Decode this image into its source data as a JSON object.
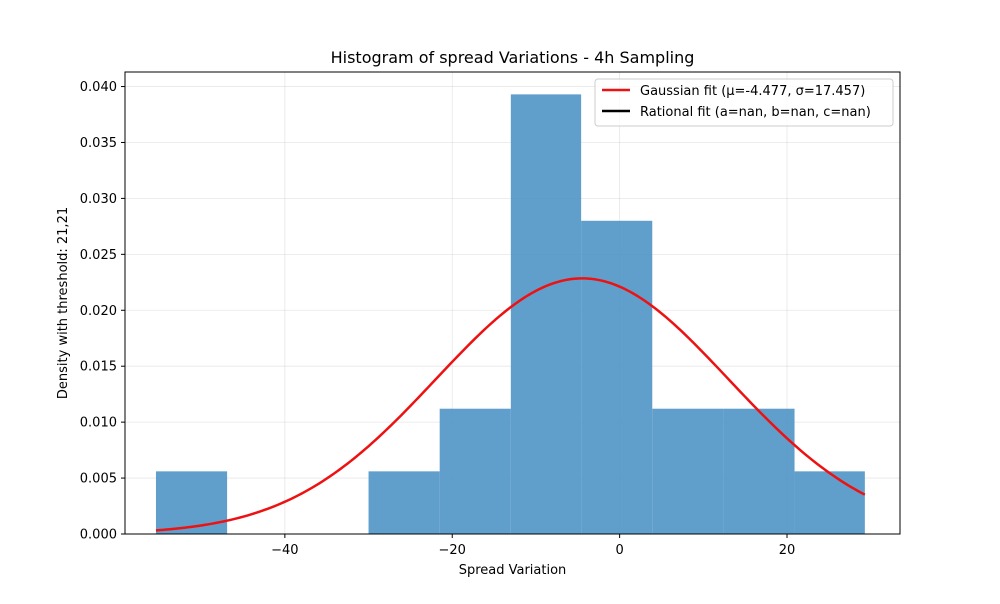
{
  "chart_data": {
    "type": "bar",
    "title": "Histogram of spread Variations - 4h Sampling",
    "xlabel": "Spread Variation",
    "ylabel": "Density with threshold: 21,21",
    "xlim": [
      -59.1,
      33.5
    ],
    "ylim": [
      0,
      0.0413
    ],
    "xticks": [
      -40,
      -20,
      0,
      20
    ],
    "xtick_labels": [
      "−40",
      "−20",
      "0",
      "20"
    ],
    "yticks": [
      0,
      0.005,
      0.01,
      0.015,
      0.02,
      0.025,
      0.03,
      0.035,
      0.04
    ],
    "ytick_labels": [
      "0.000",
      "0.005",
      "0.010",
      "0.015",
      "0.020",
      "0.025",
      "0.030",
      "0.035",
      "0.040"
    ],
    "grid": true,
    "legend_position": "top-right",
    "bar_color": "#4f93c7",
    "bins": [
      {
        "x0": -55.4,
        "x1": -46.9,
        "density": 0.0056
      },
      {
        "x0": -46.9,
        "x1": -38.5,
        "density": 0
      },
      {
        "x0": -38.5,
        "x1": -30.0,
        "density": 0
      },
      {
        "x0": -30.0,
        "x1": -21.5,
        "density": 0.0056
      },
      {
        "x0": -21.5,
        "x1": -13.0,
        "density": 0.0112
      },
      {
        "x0": -13.0,
        "x1": -4.6,
        "density": 0.0393
      },
      {
        "x0": -4.6,
        "x1": 3.9,
        "density": 0.028
      },
      {
        "x0": 3.9,
        "x1": 12.4,
        "density": 0.0112
      },
      {
        "x0": 12.4,
        "x1": 20.9,
        "density": 0.0112
      },
      {
        "x0": 20.9,
        "x1": 29.3,
        "density": 0.0056
      }
    ],
    "series": [
      {
        "name": "Gaussian fit (μ=-4.477, σ=17.457)",
        "type": "line",
        "color": "#ee1111",
        "mu": -4.477,
        "sigma": 17.457,
        "x_range": [
          -55.4,
          29.3
        ]
      },
      {
        "name": "Rational fit (a=nan, b=nan, c=nan)",
        "type": "line",
        "color": "#000000"
      }
    ]
  }
}
